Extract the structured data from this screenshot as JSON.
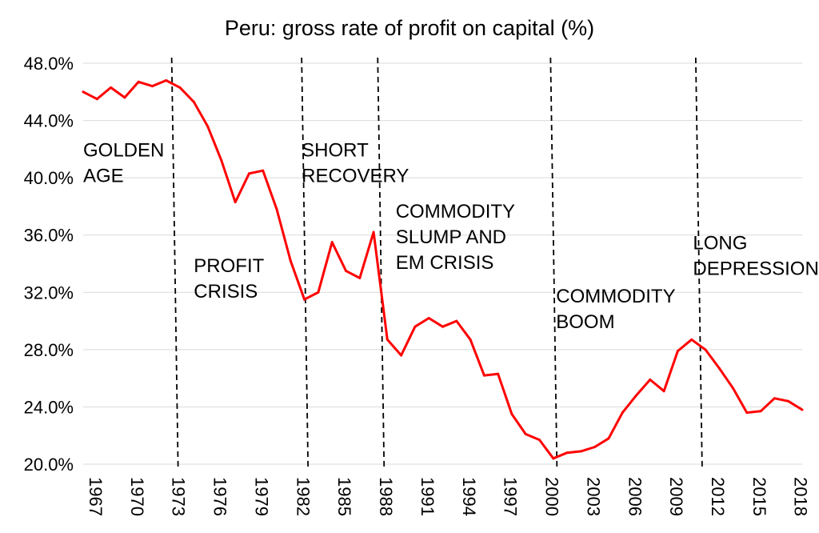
{
  "chart_data": {
    "type": "line",
    "title": "Peru: gross rate of profit on capital (%)",
    "xlabel": "",
    "ylabel": "",
    "ylim": [
      20,
      48
    ],
    "xlim": [
      1967,
      2019
    ],
    "y_ticks": [
      20,
      24,
      28,
      32,
      36,
      40,
      44,
      48
    ],
    "y_tick_labels": [
      "20.0%",
      "24.0%",
      "28.0%",
      "32.0%",
      "36.0%",
      "40.0%",
      "44.0%",
      "48.0%"
    ],
    "x_tick_labels": [
      "1967",
      "1970",
      "1973",
      "1976",
      "1979",
      "1982",
      "1985",
      "1988",
      "1991",
      "1994",
      "1997",
      "2000",
      "2003",
      "2006",
      "2009",
      "2012",
      "2015",
      "2018"
    ],
    "grid": "horizontal",
    "series": [
      {
        "name": "Gross rate of profit on capital",
        "color": "#ff0000",
        "x": [
          1967,
          1968,
          1969,
          1970,
          1971,
          1972,
          1973,
          1974,
          1975,
          1976,
          1977,
          1978,
          1979,
          1980,
          1981,
          1982,
          1983,
          1984,
          1985,
          1986,
          1987,
          1988,
          1989,
          1990,
          1991,
          1992,
          1993,
          1994,
          1995,
          1996,
          1997,
          1998,
          1999,
          2000,
          2001,
          2002,
          2003,
          2004,
          2005,
          2006,
          2007,
          2008,
          2009,
          2010,
          2011,
          2012,
          2013,
          2014,
          2015,
          2016,
          2017,
          2018,
          2019
        ],
        "values": [
          46.0,
          45.5,
          46.3,
          45.6,
          46.7,
          46.4,
          46.8,
          46.3,
          45.3,
          43.6,
          41.2,
          38.3,
          40.3,
          40.5,
          37.8,
          34.2,
          31.5,
          32.0,
          35.5,
          33.5,
          33.0,
          36.2,
          28.7,
          27.6,
          29.6,
          30.2,
          29.6,
          30.0,
          28.7,
          26.2,
          26.3,
          23.5,
          22.1,
          21.7,
          20.4,
          20.8,
          20.9,
          21.2,
          21.8,
          23.6,
          24.8,
          25.9,
          25.1,
          27.9,
          28.7,
          28.0,
          26.7,
          25.3,
          23.6,
          23.7,
          24.6,
          24.4,
          23.8
        ]
      }
    ],
    "period_dividers": [
      1973.4,
      1982.8,
      1988.3,
      2000.8,
      2011.3
    ],
    "annotations": [
      {
        "lines": [
          "GOLDEN",
          "AGE"
        ],
        "x": 1967,
        "y": 41.5
      },
      {
        "lines": [
          "PROFIT",
          "CRISIS"
        ],
        "x": 1975,
        "y": 33.4
      },
      {
        "lines": [
          "SHORT",
          "RECOVERY"
        ],
        "x": 1982.8,
        "y": 41.5
      },
      {
        "lines": [
          "COMMODITY",
          "SLUMP AND",
          "EM CRISIS"
        ],
        "x": 1989.6,
        "y": 37.2
      },
      {
        "lines": [
          "COMMODITY",
          "BOOM"
        ],
        "x": 2001.2,
        "y": 31.3
      },
      {
        "lines": [
          "LONG",
          "DEPRESSION"
        ],
        "x": 2011.1,
        "y": 35.0
      }
    ]
  }
}
